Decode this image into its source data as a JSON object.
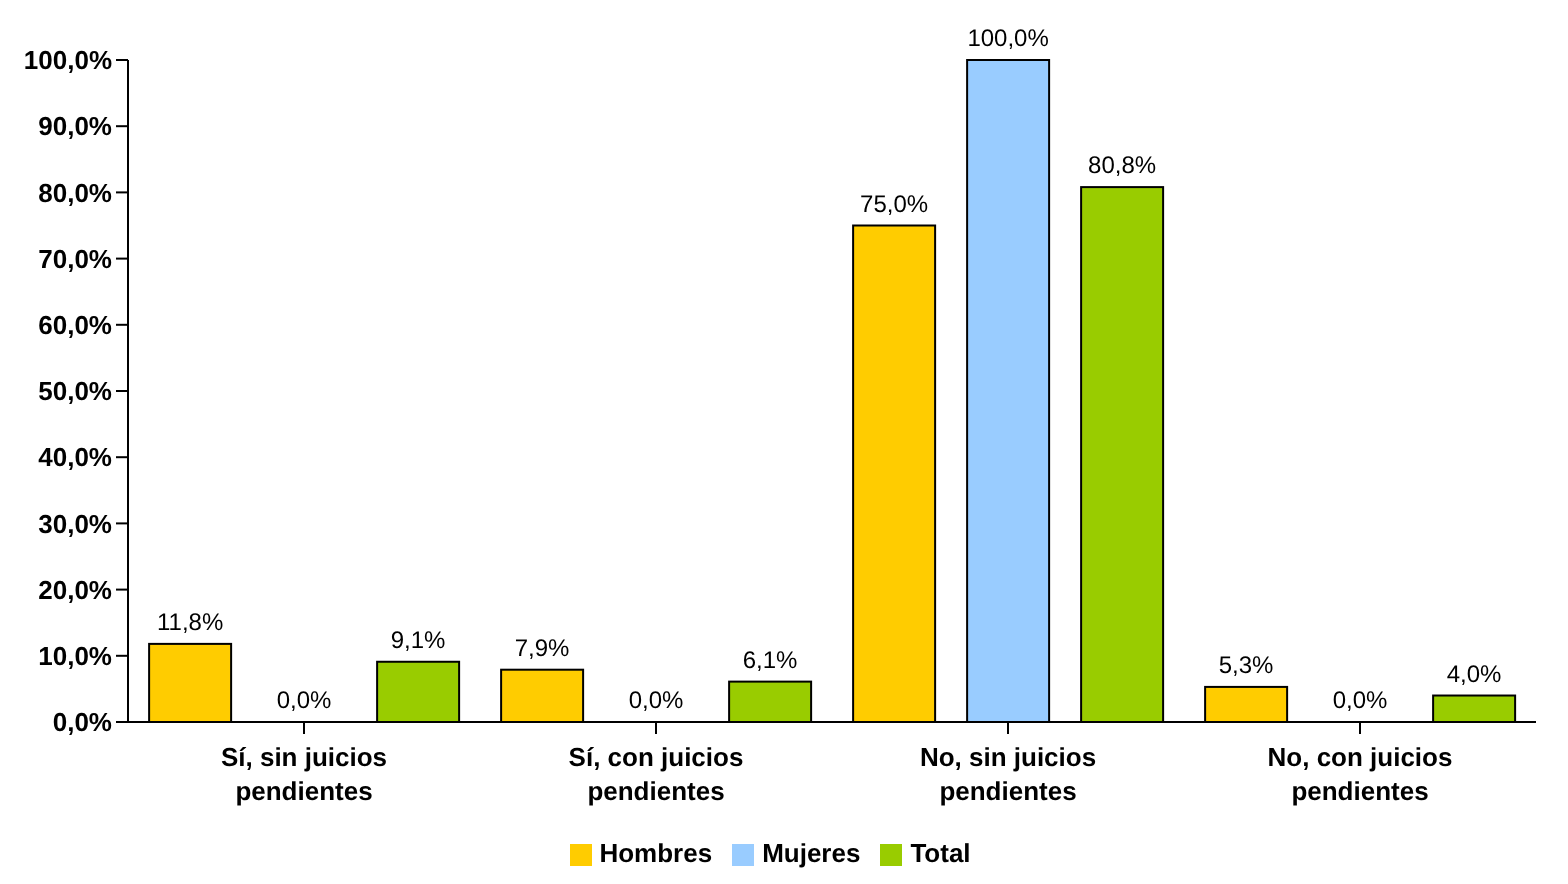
{
  "chart_data": {
    "type": "bar",
    "categories": [
      "Sí, sin juicios pendientes",
      "Sí, con juicios pendientes",
      "No, sin juicios pendientes",
      "No, con juicios pendientes"
    ],
    "series": [
      {
        "name": "Hombres",
        "color": "#ffcc00",
        "values": [
          11.8,
          7.9,
          75.0,
          5.3
        ],
        "value_labels": [
          "11,8%",
          "7,9%",
          "75,0%",
          "5,3%"
        ]
      },
      {
        "name": "Mujeres",
        "color": "#99ccff",
        "values": [
          0,
          0,
          100.0,
          0
        ],
        "value_labels": [
          "0,0%",
          "0,0%",
          "100,0%",
          "0,0%"
        ]
      },
      {
        "name": "Total",
        "color": "#99cc00",
        "values": [
          9.1,
          6.1,
          80.8,
          4.0
        ],
        "value_labels": [
          "9,1%",
          "6,1%",
          "80,8%",
          "4,0%"
        ]
      }
    ],
    "ylim": [
      0,
      100
    ],
    "yticks": [
      {
        "value": 0,
        "label": "0,0%"
      },
      {
        "value": 10,
        "label": "10,0%"
      },
      {
        "value": 20,
        "label": "20,0%"
      },
      {
        "value": 30,
        "label": "30,0%"
      },
      {
        "value": 40,
        "label": "40,0%"
      },
      {
        "value": 50,
        "label": "50,0%"
      },
      {
        "value": 60,
        "label": "60,0%"
      },
      {
        "value": 70,
        "label": "70,0%"
      },
      {
        "value": 80,
        "label": "80,0%"
      },
      {
        "value": 90,
        "label": "90,0%"
      },
      {
        "value": 100,
        "label": "100,0%"
      }
    ],
    "grid": false,
    "legend": "bottom"
  }
}
